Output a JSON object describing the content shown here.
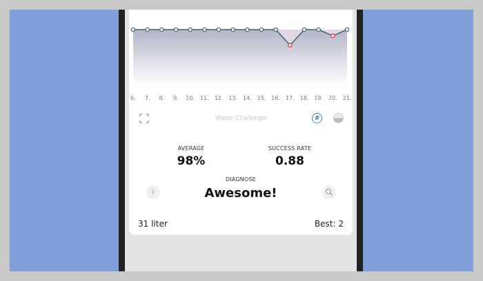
{
  "chart_data": {
    "type": "area",
    "categories": [
      "6.",
      "7.",
      "8.",
      "9.",
      "10.",
      "11.",
      "12.",
      "13.",
      "14.",
      "15.",
      "16.",
      "17.",
      "18.",
      "19.",
      "20.",
      "21."
    ],
    "values": [
      1,
      1,
      1,
      1,
      1,
      1,
      1,
      1,
      1,
      1,
      1,
      0.72,
      1,
      1,
      0.89,
      1
    ],
    "ylim": [
      0,
      1
    ],
    "colors": {
      "line": "#3d6673",
      "fail_point": "#e0364a",
      "fill_top": "#b3b5c8"
    }
  },
  "card": {
    "title": "Water Challenge",
    "average_label": "AVERAGE",
    "average_value": "98%",
    "success_label": "SUCCESS RATE",
    "success_value": "0.88",
    "diagnose_label": "DIAGNOSE",
    "diagnose_value": "Awesome!",
    "total": "31 liter",
    "best": "Best: 2",
    "icons": [
      "fullscreen-icon",
      "hashtag-icon",
      "fill-level-icon",
      "info-icon",
      "search-icon"
    ]
  }
}
